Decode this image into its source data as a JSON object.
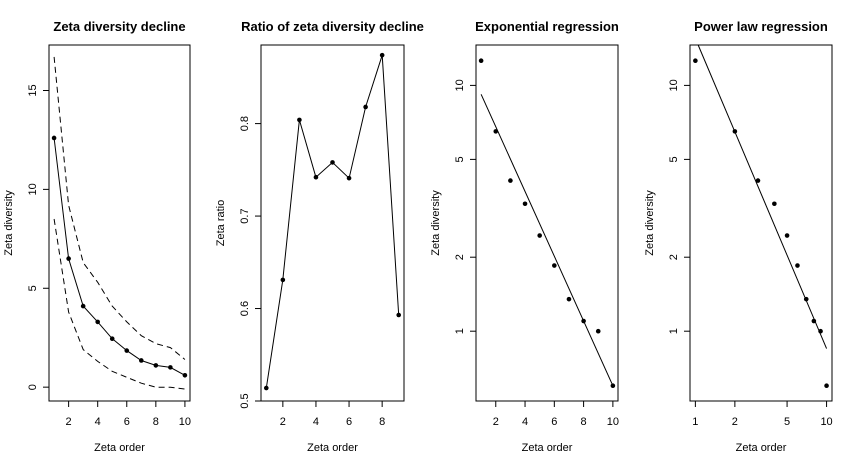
{
  "chart_data": [
    {
      "type": "line",
      "title": "Zeta diversity decline",
      "xlabel": "Zeta order",
      "ylabel": "Zeta diversity",
      "xlim": [
        0.65,
        10.35
      ],
      "ylim": [
        -0.7,
        17.3
      ],
      "x_scale": "linear",
      "y_scale": "linear",
      "x_ticks": [
        2,
        4,
        6,
        8,
        10
      ],
      "y_ticks": [
        0,
        5,
        10,
        15
      ],
      "x": [
        1,
        2,
        3,
        4,
        5,
        6,
        7,
        8,
        9,
        10
      ],
      "series": [
        {
          "values": [
            12.6,
            6.5,
            4.1,
            3.3,
            2.45,
            1.85,
            1.35,
            1.1,
            1.0,
            0.6
          ],
          "style": "line+points"
        },
        {
          "values": [
            16.7,
            9.2,
            6.3,
            5.3,
            4.1,
            3.3,
            2.6,
            2.2,
            2.0,
            1.4
          ],
          "style": "dashed"
        },
        {
          "values": [
            8.5,
            3.8,
            1.9,
            1.3,
            0.8,
            0.5,
            0.2,
            0.0,
            0.0,
            -0.1
          ],
          "style": "dashed"
        }
      ]
    },
    {
      "type": "line",
      "title": "Ratio of zeta diversity decline",
      "xlabel": "Zeta order",
      "ylabel": "Zeta ratio",
      "xlim": [
        0.68,
        9.32
      ],
      "ylim": [
        0.5,
        0.885
      ],
      "x_scale": "linear",
      "y_scale": "linear",
      "x_ticks": [
        2,
        4,
        6,
        8
      ],
      "y_ticks": [
        0.5,
        0.6,
        0.7,
        0.8
      ],
      "y_tick_labels": [
        "0.5",
        "0.6",
        "0.7",
        "0.8"
      ],
      "x": [
        1,
        2,
        3,
        4,
        5,
        6,
        7,
        8,
        9
      ],
      "series": [
        {
          "values": [
            0.514,
            0.631,
            0.804,
            0.742,
            0.758,
            0.741,
            0.818,
            0.874,
            0.593
          ],
          "style": "line+points"
        }
      ]
    },
    {
      "type": "scatter",
      "title": "Exponential regression",
      "xlabel": "Zeta order",
      "ylabel": "Zeta diversity",
      "xlim": [
        0.65,
        10.35
      ],
      "ylim": [
        0.52,
        14.6
      ],
      "x_scale": "linear",
      "y_scale": "log",
      "x_ticks": [
        2,
        4,
        6,
        8,
        10
      ],
      "y_ticks": [
        1,
        2,
        5,
        10
      ],
      "x": [
        1,
        2,
        3,
        4,
        5,
        6,
        7,
        8,
        9,
        10
      ],
      "series": [
        {
          "values": [
            12.6,
            6.5,
            4.1,
            3.3,
            2.45,
            1.85,
            1.35,
            1.1,
            1.0,
            0.6
          ],
          "style": "points"
        }
      ],
      "fit_line": {
        "x": [
          1,
          10
        ],
        "y": [
          9.2,
          0.6
        ]
      }
    },
    {
      "type": "scatter",
      "title": "Power law regression",
      "xlabel": "Zeta order",
      "ylabel": "Zeta diversity",
      "xlim": [
        0.91,
        11.0
      ],
      "ylim": [
        0.52,
        14.6
      ],
      "x_scale": "log",
      "y_scale": "log",
      "x_ticks": [
        1,
        2,
        5,
        10
      ],
      "y_ticks": [
        1,
        2,
        5,
        10
      ],
      "x": [
        1,
        2,
        3,
        4,
        5,
        6,
        7,
        8,
        9,
        10
      ],
      "series": [
        {
          "values": [
            12.6,
            6.5,
            4.1,
            3.3,
            2.45,
            1.85,
            1.35,
            1.1,
            1.0,
            0.6
          ],
          "style": "points"
        }
      ],
      "fit_line": {
        "x": [
          1.05,
          10
        ],
        "y": [
          14.6,
          0.85
        ]
      }
    }
  ]
}
